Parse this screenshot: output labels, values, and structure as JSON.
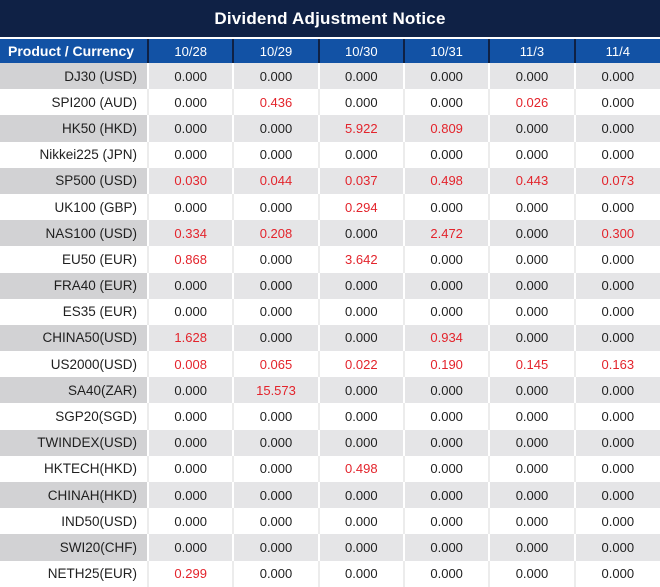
{
  "title": "Dividend Adjustment Notice",
  "colors": {
    "title_bar": "#0f2145",
    "header_blue": "#1252a5",
    "red_value": "#e3242c",
    "alt_row_product": "#d2d2d4",
    "alt_row_values": "#e5e5e7"
  },
  "table": {
    "product_header": "Product / Currency",
    "date_columns": [
      "10/28",
      "10/29",
      "10/30",
      "10/31",
      "11/3",
      "11/4"
    ],
    "rows": [
      {
        "product": "DJ30 (USD)",
        "values": [
          "0.000",
          "0.000",
          "0.000",
          "0.000",
          "0.000",
          "0.000"
        ],
        "red": [
          0,
          0,
          0,
          0,
          0,
          0
        ]
      },
      {
        "product": "SPI200 (AUD)",
        "values": [
          "0.000",
          "0.436",
          "0.000",
          "0.000",
          "0.026",
          "0.000"
        ],
        "red": [
          0,
          1,
          0,
          0,
          1,
          0
        ]
      },
      {
        "product": "HK50 (HKD)",
        "values": [
          "0.000",
          "0.000",
          "5.922",
          "0.809",
          "0.000",
          "0.000"
        ],
        "red": [
          0,
          0,
          1,
          1,
          0,
          0
        ]
      },
      {
        "product": "Nikkei225 (JPN)",
        "values": [
          "0.000",
          "0.000",
          "0.000",
          "0.000",
          "0.000",
          "0.000"
        ],
        "red": [
          0,
          0,
          0,
          0,
          0,
          0
        ]
      },
      {
        "product": "SP500 (USD)",
        "values": [
          "0.030",
          "0.044",
          "0.037",
          "0.498",
          "0.443",
          "0.073"
        ],
        "red": [
          1,
          1,
          1,
          1,
          1,
          1
        ]
      },
      {
        "product": "UK100 (GBP)",
        "values": [
          "0.000",
          "0.000",
          "0.294",
          "0.000",
          "0.000",
          "0.000"
        ],
        "red": [
          0,
          0,
          1,
          0,
          0,
          0
        ]
      },
      {
        "product": "NAS100 (USD)",
        "values": [
          "0.334",
          "0.208",
          "0.000",
          "2.472",
          "0.000",
          "0.300"
        ],
        "red": [
          1,
          1,
          0,
          1,
          0,
          1
        ]
      },
      {
        "product": "EU50 (EUR)",
        "values": [
          "0.868",
          "0.000",
          "3.642",
          "0.000",
          "0.000",
          "0.000"
        ],
        "red": [
          1,
          0,
          1,
          0,
          0,
          0
        ]
      },
      {
        "product": "FRA40 (EUR)",
        "values": [
          "0.000",
          "0.000",
          "0.000",
          "0.000",
          "0.000",
          "0.000"
        ],
        "red": [
          0,
          0,
          0,
          0,
          0,
          0
        ]
      },
      {
        "product": "ES35 (EUR)",
        "values": [
          "0.000",
          "0.000",
          "0.000",
          "0.000",
          "0.000",
          "0.000"
        ],
        "red": [
          0,
          0,
          0,
          0,
          0,
          0
        ]
      },
      {
        "product": "CHINA50(USD)",
        "values": [
          "1.628",
          "0.000",
          "0.000",
          "0.934",
          "0.000",
          "0.000"
        ],
        "red": [
          1,
          0,
          0,
          1,
          0,
          0
        ]
      },
      {
        "product": "US2000(USD)",
        "values": [
          "0.008",
          "0.065",
          "0.022",
          "0.190",
          "0.145",
          "0.163"
        ],
        "red": [
          1,
          1,
          1,
          1,
          1,
          1
        ]
      },
      {
        "product": "SA40(ZAR)",
        "values": [
          "0.000",
          "15.573",
          "0.000",
          "0.000",
          "0.000",
          "0.000"
        ],
        "red": [
          0,
          1,
          0,
          0,
          0,
          0
        ]
      },
      {
        "product": "SGP20(SGD)",
        "values": [
          "0.000",
          "0.000",
          "0.000",
          "0.000",
          "0.000",
          "0.000"
        ],
        "red": [
          0,
          0,
          0,
          0,
          0,
          0
        ]
      },
      {
        "product": "TWINDEX(USD)",
        "values": [
          "0.000",
          "0.000",
          "0.000",
          "0.000",
          "0.000",
          "0.000"
        ],
        "red": [
          0,
          0,
          0,
          0,
          0,
          0
        ]
      },
      {
        "product": "HKTECH(HKD)",
        "values": [
          "0.000",
          "0.000",
          "0.498",
          "0.000",
          "0.000",
          "0.000"
        ],
        "red": [
          0,
          0,
          1,
          0,
          0,
          0
        ]
      },
      {
        "product": "CHINAH(HKD)",
        "values": [
          "0.000",
          "0.000",
          "0.000",
          "0.000",
          "0.000",
          "0.000"
        ],
        "red": [
          0,
          0,
          0,
          0,
          0,
          0
        ]
      },
      {
        "product": "IND50(USD)",
        "values": [
          "0.000",
          "0.000",
          "0.000",
          "0.000",
          "0.000",
          "0.000"
        ],
        "red": [
          0,
          0,
          0,
          0,
          0,
          0
        ]
      },
      {
        "product": "SWI20(CHF)",
        "values": [
          "0.000",
          "0.000",
          "0.000",
          "0.000",
          "0.000",
          "0.000"
        ],
        "red": [
          0,
          0,
          0,
          0,
          0,
          0
        ]
      },
      {
        "product": "NETH25(EUR)",
        "values": [
          "0.299",
          "0.000",
          "0.000",
          "0.000",
          "0.000",
          "0.000"
        ],
        "red": [
          1,
          0,
          0,
          0,
          0,
          0
        ]
      }
    ]
  }
}
